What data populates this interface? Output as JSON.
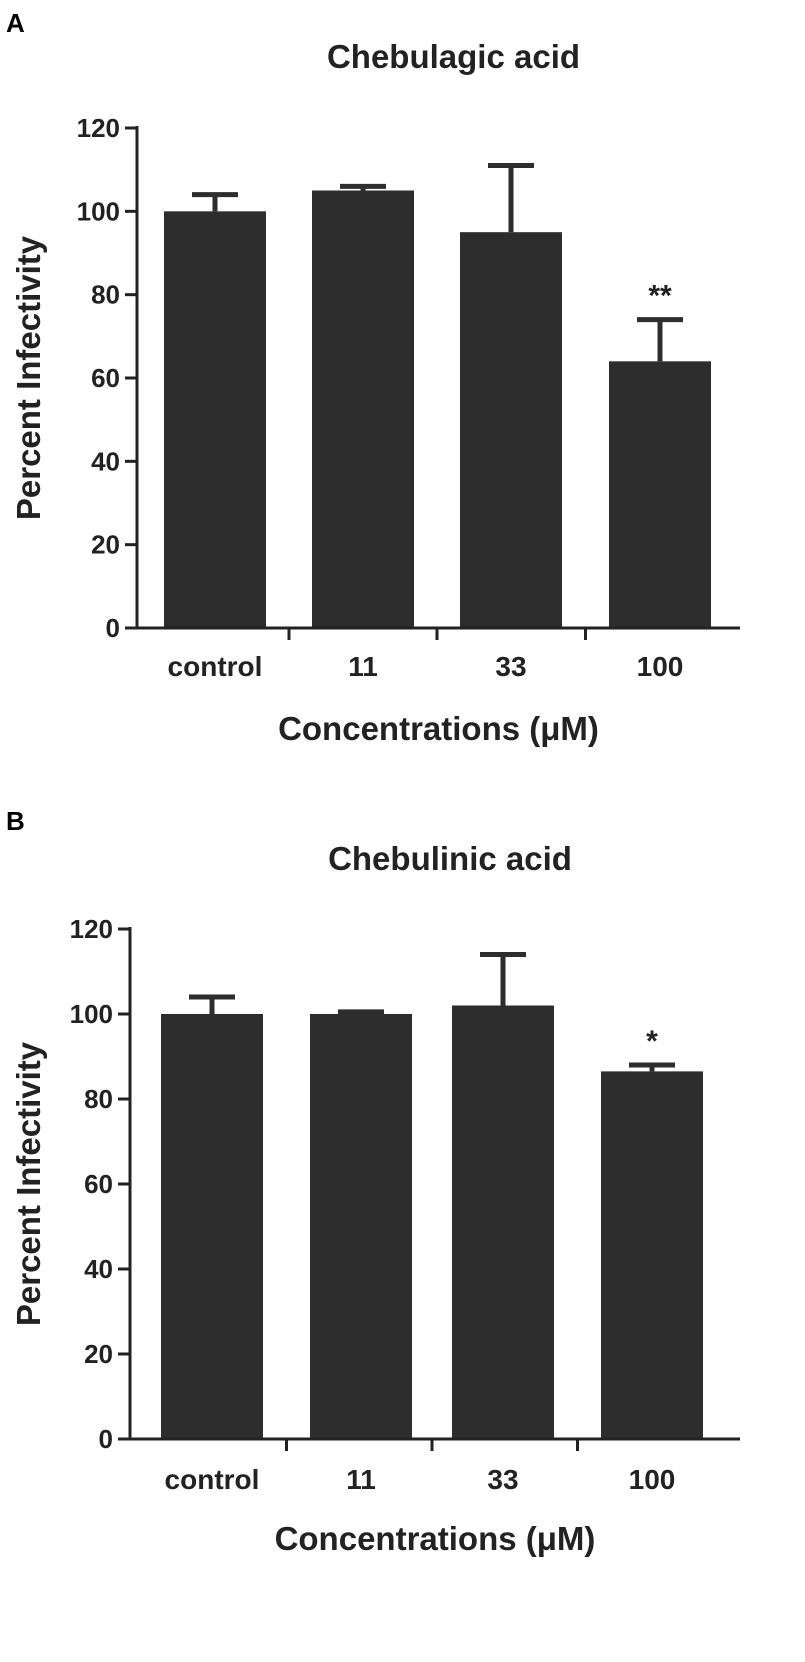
{
  "chart_data": [
    {
      "panel": "A",
      "type": "bar",
      "title": "Chebulagic acid",
      "xlabel": "Concentrations (μM)",
      "ylabel": "Percent Infectivity",
      "categories": [
        "control",
        "11",
        "33",
        "100"
      ],
      "values": [
        100,
        105,
        95,
        64
      ],
      "error_upper": [
        104,
        106,
        111,
        74
      ],
      "significance": [
        "",
        "",
        "",
        "**"
      ],
      "ylim": [
        0,
        120
      ],
      "yticks": [
        0,
        20,
        40,
        60,
        80,
        100,
        120
      ],
      "bar_color": "#2d2d2d",
      "grid": false
    },
    {
      "panel": "B",
      "type": "bar",
      "title": "Chebulinic acid",
      "xlabel": "Concentrations (μM)",
      "ylabel": "Percent Infectivity",
      "categories": [
        "control",
        "11",
        "33",
        "100"
      ],
      "values": [
        100,
        100,
        102,
        86.5
      ],
      "error_upper": [
        104,
        100.5,
        114,
        88
      ],
      "significance": [
        "",
        "",
        "",
        "*"
      ],
      "ylim": [
        0,
        120
      ],
      "yticks": [
        0,
        20,
        40,
        60,
        80,
        100,
        120
      ],
      "bar_color": "#2d2d2d",
      "grid": false
    }
  ]
}
